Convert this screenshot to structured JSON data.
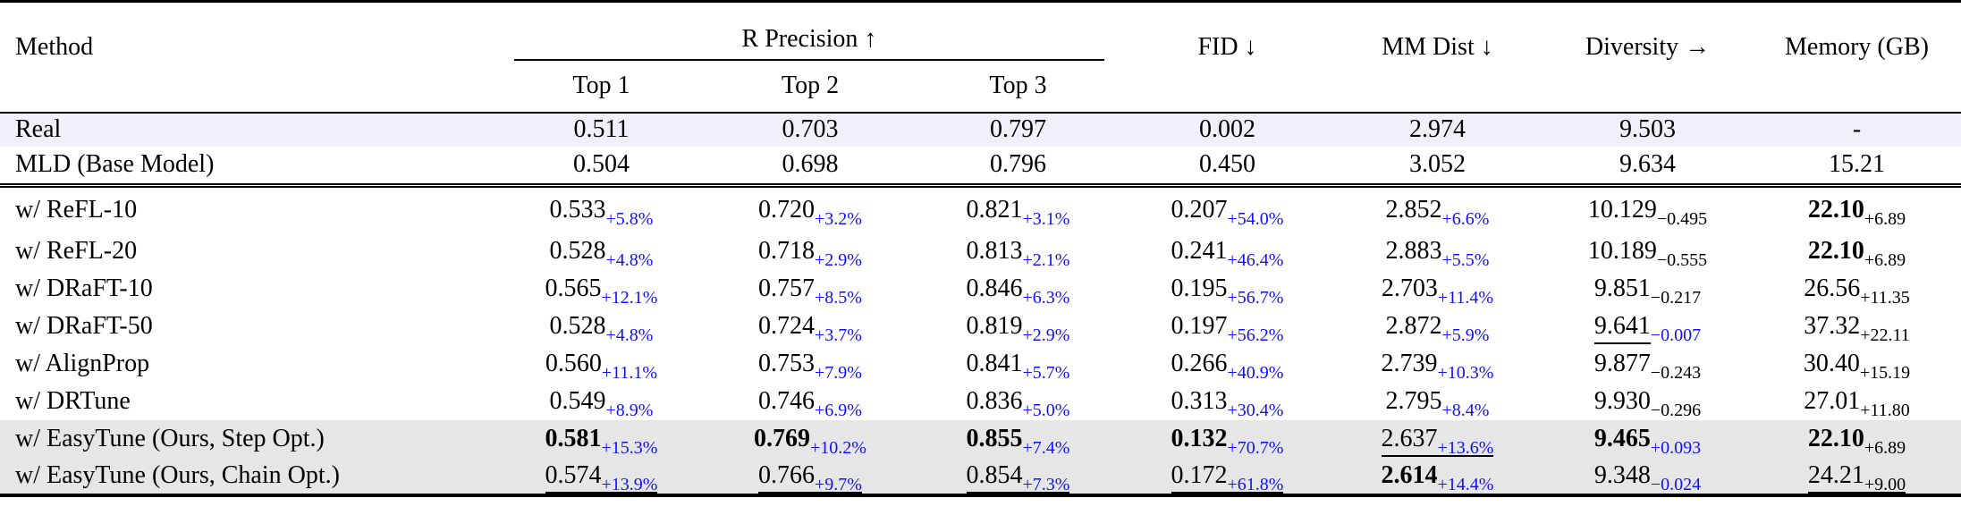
{
  "header": {
    "method": "Method",
    "r_precision": "R Precision ↑",
    "top1": "Top 1",
    "top2": "Top 2",
    "top3": "Top 3",
    "fid": "FID ↓",
    "mm_dist": "MM Dist ↓",
    "diversity": "Diversity →",
    "memory": "Memory (GB)"
  },
  "colors": {
    "delta_blue": "#1010ff",
    "real_row_bg": "#f0f0fb",
    "ours_row_bg": "#e6e6e6"
  },
  "baseline_rows": [
    {
      "method": "Real",
      "cells": [
        "0.511",
        "0.703",
        "0.797",
        "0.002",
        "2.974",
        "9.503",
        "-"
      ]
    },
    {
      "method": "MLD (Base Model)",
      "cells": [
        "0.504",
        "0.698",
        "0.796",
        "0.450",
        "3.052",
        "9.634",
        "15.21"
      ]
    }
  ],
  "rows": [
    {
      "method": "w/ ReFL-10",
      "cells": [
        {
          "v": "0.533",
          "d": "+5.8%",
          "blue": true
        },
        {
          "v": "0.720",
          "d": "+3.2%",
          "blue": true
        },
        {
          "v": "0.821",
          "d": "+3.1%",
          "blue": true
        },
        {
          "v": "0.207",
          "d": "+54.0%",
          "blue": true
        },
        {
          "v": "2.852",
          "d": "+6.6%",
          "blue": true
        },
        {
          "v": "10.129",
          "d": "−0.495"
        },
        {
          "v": "22.10",
          "d": "+6.89",
          "bold": true
        }
      ]
    },
    {
      "method": "w/ ReFL-20",
      "cells": [
        {
          "v": "0.528",
          "d": "+4.8%",
          "blue": true
        },
        {
          "v": "0.718",
          "d": "+2.9%",
          "blue": true
        },
        {
          "v": "0.813",
          "d": "+2.1%",
          "blue": true
        },
        {
          "v": "0.241",
          "d": "+46.4%",
          "blue": true
        },
        {
          "v": "2.883",
          "d": "+5.5%",
          "blue": true
        },
        {
          "v": "10.189",
          "d": "−0.555"
        },
        {
          "v": "22.10",
          "d": "+6.89",
          "bold": true
        }
      ]
    },
    {
      "method": "w/ DRaFT-10",
      "cells": [
        {
          "v": "0.565",
          "d": "+12.1%",
          "blue": true
        },
        {
          "v": "0.757",
          "d": "+8.5%",
          "blue": true
        },
        {
          "v": "0.846",
          "d": "+6.3%",
          "blue": true
        },
        {
          "v": "0.195",
          "d": "+56.7%",
          "blue": true
        },
        {
          "v": "2.703",
          "d": "+11.4%",
          "blue": true
        },
        {
          "v": "9.851",
          "d": "−0.217"
        },
        {
          "v": "26.56",
          "d": "+11.35"
        }
      ]
    },
    {
      "method": "w/ DRaFT-50",
      "cells": [
        {
          "v": "0.528",
          "d": "+4.8%",
          "blue": true
        },
        {
          "v": "0.724",
          "d": "+3.7%",
          "blue": true
        },
        {
          "v": "0.819",
          "d": "+2.9%",
          "blue": true
        },
        {
          "v": "0.197",
          "d": "+56.2%",
          "blue": true
        },
        {
          "v": "2.872",
          "d": "+5.9%",
          "blue": true
        },
        {
          "v": "9.641",
          "d": "−0.007",
          "blue": true,
          "ul": "value"
        },
        {
          "v": "37.32",
          "d": "+22.11"
        }
      ]
    },
    {
      "method": "w/ AlignProp",
      "cells": [
        {
          "v": "0.560",
          "d": "+11.1%",
          "blue": true
        },
        {
          "v": "0.753",
          "d": "+7.9%",
          "blue": true
        },
        {
          "v": "0.841",
          "d": "+5.7%",
          "blue": true
        },
        {
          "v": "0.266",
          "d": "+40.9%",
          "blue": true
        },
        {
          "v": "2.739",
          "d": "+10.3%",
          "blue": true
        },
        {
          "v": "9.877",
          "d": "−0.243"
        },
        {
          "v": "30.40",
          "d": "+15.19"
        }
      ]
    },
    {
      "method": "w/ DRTune",
      "cells": [
        {
          "v": "0.549",
          "d": "+8.9%",
          "blue": true
        },
        {
          "v": "0.746",
          "d": "+6.9%",
          "blue": true
        },
        {
          "v": "0.836",
          "d": "+5.0%",
          "blue": true
        },
        {
          "v": "0.313",
          "d": "+30.4%",
          "blue": true
        },
        {
          "v": "2.795",
          "d": "+8.4%",
          "blue": true
        },
        {
          "v": "9.930",
          "d": "−0.296"
        },
        {
          "v": "27.01",
          "d": "+11.80"
        }
      ]
    },
    {
      "method": "w/ EasyTune (Ours, Step Opt.)",
      "ours": true,
      "cells": [
        {
          "v": "0.581",
          "d": "+15.3%",
          "blue": true,
          "bold": true
        },
        {
          "v": "0.769",
          "d": "+10.2%",
          "blue": true,
          "bold": true
        },
        {
          "v": "0.855",
          "d": "+7.4%",
          "blue": true,
          "bold": true
        },
        {
          "v": "0.132",
          "d": "+70.7%",
          "blue": true,
          "bold": true
        },
        {
          "v": "2.637",
          "d": "+13.6%",
          "blue": true,
          "ul": "all"
        },
        {
          "v": "9.465",
          "d": "+0.093",
          "blue": true,
          "bold": true
        },
        {
          "v": "22.10",
          "d": "+6.89",
          "bold": true
        }
      ]
    },
    {
      "method": "w/ EasyTune (Ours, Chain Opt.)",
      "ours": true,
      "cells": [
        {
          "v": "0.574",
          "d": "+13.9%",
          "blue": true,
          "ul": "all"
        },
        {
          "v": "0.766",
          "d": "+9.7%",
          "blue": true,
          "ul": "all"
        },
        {
          "v": "0.854",
          "d": "+7.3%",
          "blue": true,
          "ul": "all"
        },
        {
          "v": "0.172",
          "d": "+61.8%",
          "blue": true,
          "ul": "all"
        },
        {
          "v": "2.614",
          "d": "+14.4%",
          "blue": true,
          "bold": true
        },
        {
          "v": "9.348",
          "d": "−0.024",
          "blue": true
        },
        {
          "v": "24.21",
          "d": "+9.00",
          "ul": "all"
        }
      ]
    }
  ]
}
